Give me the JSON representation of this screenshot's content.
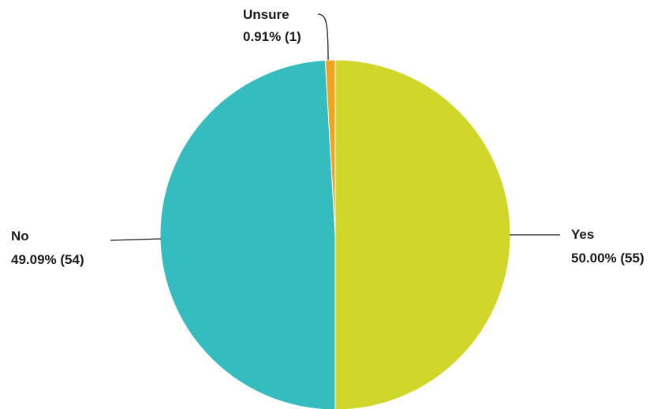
{
  "chart_data": {
    "type": "pie",
    "title": "",
    "slices": [
      {
        "name": "Yes",
        "percent_label": "50.00% (55)",
        "value": 55,
        "percent": 50.0,
        "color": "#d0d62a"
      },
      {
        "name": "No",
        "percent_label": "49.09% (54)",
        "value": 54,
        "percent": 49.09,
        "color": "#34bcbf"
      },
      {
        "name": "Unsure",
        "percent_label": "0.91% (1)",
        "value": 1,
        "percent": 0.91,
        "color": "#f0a31e"
      }
    ],
    "legend": "none",
    "start_angle": "12 o'clock",
    "direction": "clockwise"
  }
}
